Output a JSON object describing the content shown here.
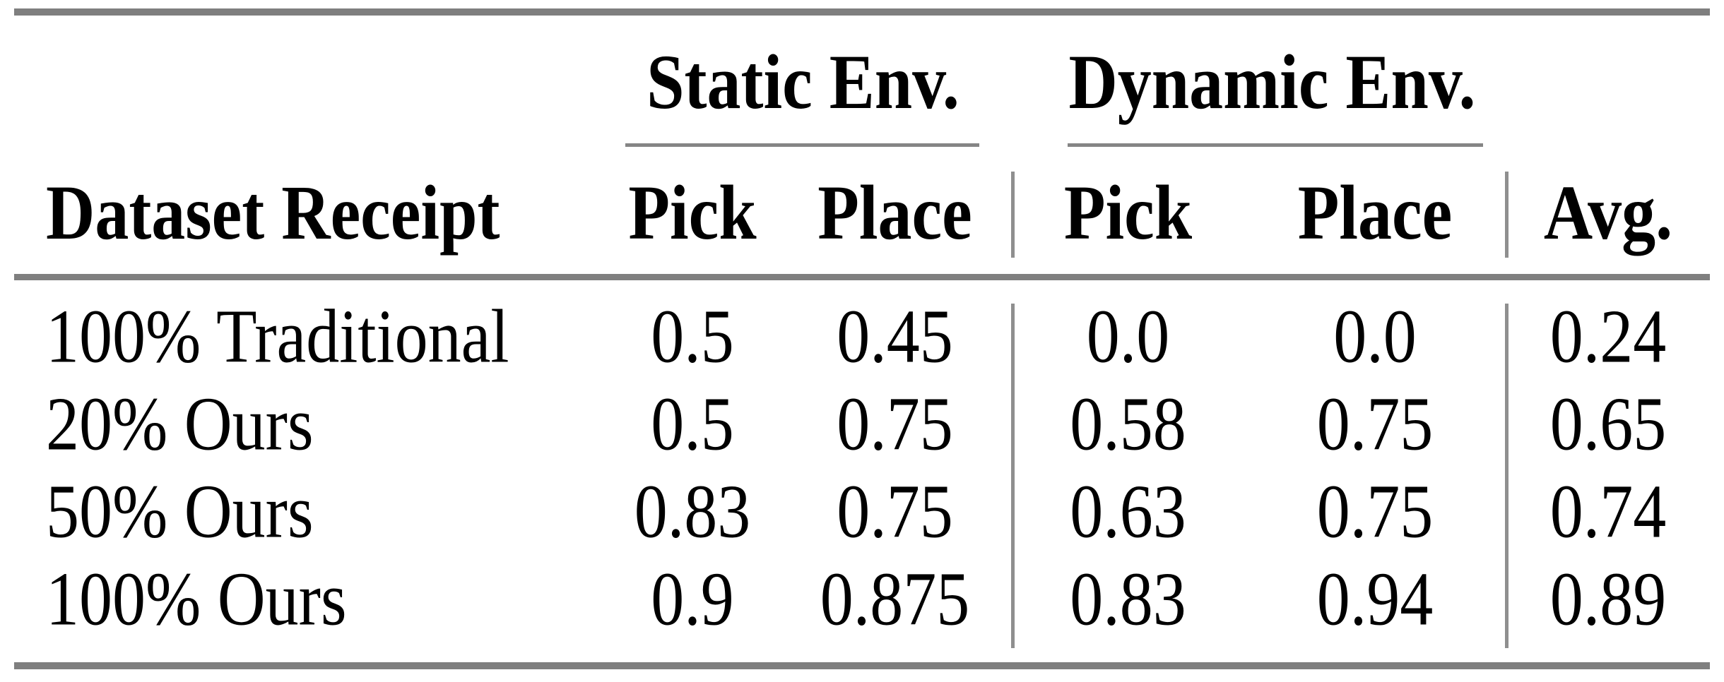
{
  "colors": {
    "rule_gray": "#7f7f7f",
    "vertical_rule_gray": "#8f8f8f",
    "text": "#000000",
    "background": "#ffffff"
  },
  "table": {
    "group_headers": [
      "Static Env.",
      "Dynamic Env."
    ],
    "column_headers": [
      "Dataset Receipt",
      "Pick",
      "Place",
      "Pick",
      "Place",
      "Avg."
    ],
    "rows": [
      {
        "label": "100% Traditional",
        "values": [
          "0.5",
          "0.45",
          "0.0",
          "0.0",
          "0.24"
        ]
      },
      {
        "label": "20% Ours",
        "values": [
          "0.5",
          "0.75",
          "0.58",
          "0.75",
          "0.65"
        ]
      },
      {
        "label": "50% Ours",
        "values": [
          "0.83",
          "0.75",
          "0.63",
          "0.75",
          "0.74"
        ]
      },
      {
        "label": "100% Ours",
        "values": [
          "0.9",
          "0.875",
          "0.83",
          "0.94",
          "0.89"
        ]
      }
    ]
  },
  "chart_data": {
    "type": "table",
    "columns": [
      "Dataset Receipt",
      "Static Env. Pick",
      "Static Env. Place",
      "Dynamic Env. Pick",
      "Dynamic Env. Place",
      "Avg."
    ],
    "rows": [
      [
        "100% Traditional",
        0.5,
        0.45,
        0.0,
        0.0,
        0.24
      ],
      [
        "20% Ours",
        0.5,
        0.75,
        0.58,
        0.75,
        0.65
      ],
      [
        "50% Ours",
        0.83,
        0.75,
        0.63,
        0.75,
        0.74
      ],
      [
        "100% Ours",
        0.9,
        0.875,
        0.83,
        0.94,
        0.89
      ]
    ]
  }
}
